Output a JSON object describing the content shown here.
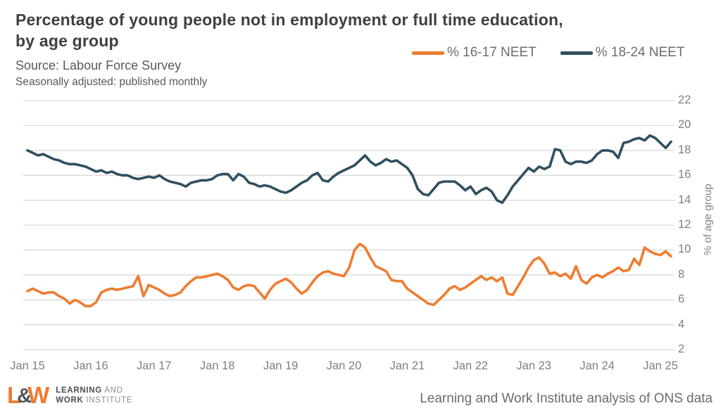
{
  "header": {
    "title_line1": "Percentage of young people not in employment or full time education,",
    "title_line2": "by age group",
    "source": "Source: Labour Force Survey",
    "note": "Seasonally adjusted: published monthly"
  },
  "legend": {
    "items": [
      {
        "label": "% 16-17 NEET",
        "color": "#ee7c30"
      },
      {
        "label": "% 18-24 NEET",
        "color": "#2f5060"
      }
    ]
  },
  "chart_data": {
    "type": "line",
    "title": "Percentage of young people not in employment or full time education, by age group",
    "x_start": "Jan 2015",
    "x_end": "Mar 2025",
    "frequency": "monthly",
    "grid": "horizontal",
    "legend_position": "top-right",
    "ylim": [
      2,
      22
    ],
    "y_ticks": [
      2,
      4,
      6,
      8,
      10,
      12,
      14,
      16,
      18,
      20,
      22
    ],
    "y_axis_title": "% of age group",
    "x_ticks": [
      {
        "label": "Jan 15",
        "month_index": 0
      },
      {
        "label": "Jan 16",
        "month_index": 12
      },
      {
        "label": "Jan 17",
        "month_index": 24
      },
      {
        "label": "Jan 18",
        "month_index": 36
      },
      {
        "label": "Jan 19",
        "month_index": 48
      },
      {
        "label": "Jan 20",
        "month_index": 60
      },
      {
        "label": "Jan 21",
        "month_index": 72
      },
      {
        "label": "Jan 22",
        "month_index": 84
      },
      {
        "label": "Jan 23",
        "month_index": 96
      },
      {
        "label": "Jan 24",
        "month_index": 108
      },
      {
        "label": "Jan 25",
        "month_index": 120
      }
    ],
    "series": [
      {
        "name": "pct-16-17-neet",
        "label": "% 16-17 NEET",
        "color": "#ee7c30",
        "values": [
          6.7,
          6.9,
          6.7,
          6.5,
          6.6,
          6.6,
          6.3,
          6.1,
          5.7,
          6.0,
          5.8,
          5.5,
          5.5,
          5.8,
          6.6,
          6.8,
          6.9,
          6.8,
          6.9,
          7.0,
          7.1,
          7.9,
          6.3,
          7.2,
          7.0,
          6.8,
          6.5,
          6.3,
          6.4,
          6.6,
          7.1,
          7.5,
          7.8,
          7.8,
          7.9,
          8.0,
          8.1,
          7.9,
          7.6,
          7.0,
          6.8,
          7.1,
          7.2,
          7.1,
          6.6,
          6.1,
          6.8,
          7.3,
          7.5,
          7.7,
          7.4,
          6.9,
          6.5,
          6.8,
          7.4,
          7.9,
          8.2,
          8.3,
          8.1,
          8.0,
          7.9,
          8.6,
          10.0,
          10.5,
          10.2,
          9.4,
          8.7,
          8.5,
          8.3,
          7.6,
          7.5,
          7.5,
          6.9,
          6.6,
          6.3,
          6.0,
          5.7,
          5.6,
          6.0,
          6.4,
          6.9,
          7.1,
          6.8,
          7.0,
          7.3,
          7.6,
          7.9,
          7.6,
          7.8,
          7.5,
          7.8,
          6.5,
          6.4,
          7.1,
          7.8,
          8.6,
          9.2,
          9.4,
          8.9,
          8.1,
          8.2,
          7.9,
          8.1,
          7.7,
          8.7,
          7.6,
          7.3,
          7.8,
          8.0,
          7.8,
          8.1,
          8.3,
          8.6,
          8.3,
          8.4,
          9.3,
          8.8,
          10.2,
          9.9,
          9.7,
          9.6,
          9.9,
          9.5
        ]
      },
      {
        "name": "pct-18-24-neet",
        "label": "% 18-24 NEET",
        "color": "#2f5060",
        "values": [
          18.0,
          17.8,
          17.6,
          17.7,
          17.5,
          17.3,
          17.2,
          17.0,
          16.9,
          16.9,
          16.8,
          16.7,
          16.5,
          16.3,
          16.4,
          16.2,
          16.3,
          16.1,
          16.0,
          16.0,
          15.8,
          15.7,
          15.8,
          15.9,
          15.8,
          16.0,
          15.7,
          15.5,
          15.4,
          15.3,
          15.1,
          15.4,
          15.5,
          15.6,
          15.6,
          15.7,
          16.0,
          16.1,
          16.1,
          15.6,
          16.1,
          15.9,
          15.4,
          15.3,
          15.1,
          15.2,
          15.1,
          14.9,
          14.7,
          14.6,
          14.8,
          15.1,
          15.4,
          15.6,
          16.0,
          16.2,
          15.6,
          15.5,
          15.9,
          16.2,
          16.4,
          16.6,
          16.8,
          17.2,
          17.6,
          17.1,
          16.8,
          17.0,
          17.3,
          17.1,
          17.2,
          16.9,
          16.6,
          16.0,
          14.9,
          14.5,
          14.4,
          14.9,
          15.4,
          15.5,
          15.5,
          15.5,
          15.2,
          14.8,
          15.1,
          14.5,
          14.8,
          15.0,
          14.7,
          14.0,
          13.8,
          14.4,
          15.1,
          15.6,
          16.1,
          16.6,
          16.3,
          16.7,
          16.5,
          16.7,
          18.1,
          18.0,
          17.1,
          16.9,
          17.1,
          17.1,
          17.0,
          17.2,
          17.7,
          18.0,
          18.0,
          17.9,
          17.4,
          18.6,
          18.7,
          18.9,
          19.0,
          18.8,
          19.2,
          19.0,
          18.6,
          18.2,
          18.7
        ]
      }
    ]
  },
  "footer": {
    "logo": {
      "mark_l": "L",
      "mark_amp": "&",
      "mark_w": "W",
      "line1_bold": "LEARNING",
      "line1_rest": " AND",
      "line2_bold": "WORK",
      "line2_rest": " INSTITUTE"
    },
    "note": "Learning and Work Institute analysis of ONS data"
  },
  "colors": {
    "accent_orange": "#ee7c30",
    "dark_teal": "#2f5060",
    "grid": "#d9d9d9",
    "title_text": "#404040",
    "subtitle_text": "#595959",
    "axis_text": "#7f7f7f",
    "footer_text": "#6b6b6b",
    "logo_grey": "#55565a"
  }
}
